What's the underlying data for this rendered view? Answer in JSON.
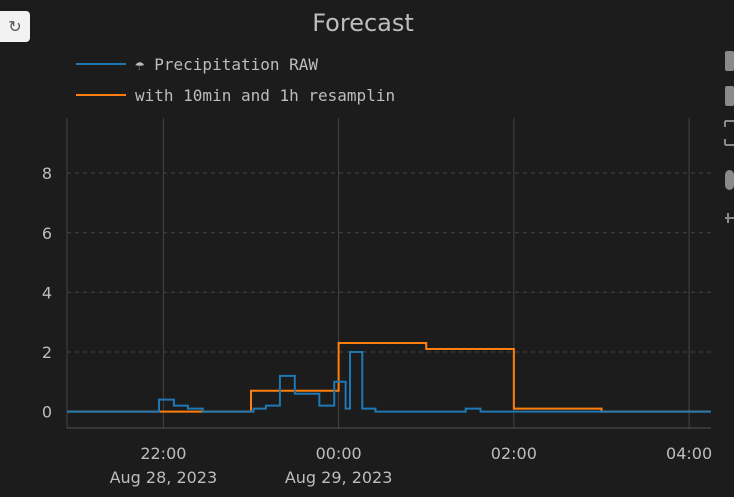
{
  "chart_data": {
    "type": "line",
    "title": "Forecast",
    "xlabel": "",
    "ylabel": "",
    "x_ticks": [
      {
        "label": "22:00",
        "sublabel": "Aug 28, 2023",
        "x": -2
      },
      {
        "label": "00:00",
        "sublabel": "Aug 29, 2023",
        "x": 0
      },
      {
        "label": "02:00",
        "sublabel": "",
        "x": 2
      },
      {
        "label": "04:00",
        "sublabel": "",
        "x": 4
      }
    ],
    "xlim": [
      -3.1,
      4.25
    ],
    "ylim": [
      -0.55,
      9.85
    ],
    "y_ticks": [
      0,
      2,
      4,
      6,
      8
    ],
    "grid": true,
    "legend_position": "top-left",
    "series": [
      {
        "name": "☂ Precipitation RAW",
        "color": "#1f77b4",
        "step": true,
        "x": [
          -3.1,
          -2.05,
          -1.88,
          -1.72,
          -1.55,
          -1.4,
          -1.05,
          -0.97,
          -0.83,
          -0.67,
          -0.5,
          -0.4,
          -0.22,
          -0.2,
          -0.05,
          0.08,
          0.13,
          0.27,
          0.42,
          1.45,
          1.62,
          3.0,
          4.25
        ],
        "y": [
          0,
          0.4,
          0.2,
          0.1,
          0,
          0,
          0,
          0.1,
          0.2,
          1.2,
          0.6,
          0.6,
          0.2,
          0.2,
          1.0,
          0.1,
          2.0,
          0.1,
          0,
          0.1,
          0,
          0,
          0
        ]
      },
      {
        "name": "with 10min and 1h resamplin",
        "color": "#ff7f0e",
        "step": true,
        "x": [
          -3.1,
          -1.0,
          0.0,
          1.0,
          2.0,
          3.0,
          4.25
        ],
        "y": [
          0,
          0.7,
          2.3,
          2.1,
          0.1,
          0,
          0
        ]
      }
    ]
  },
  "legend_items": [
    "☂ Precipitation RAW",
    "with 10min and 1h resamplin"
  ],
  "reset_icon": "↻"
}
